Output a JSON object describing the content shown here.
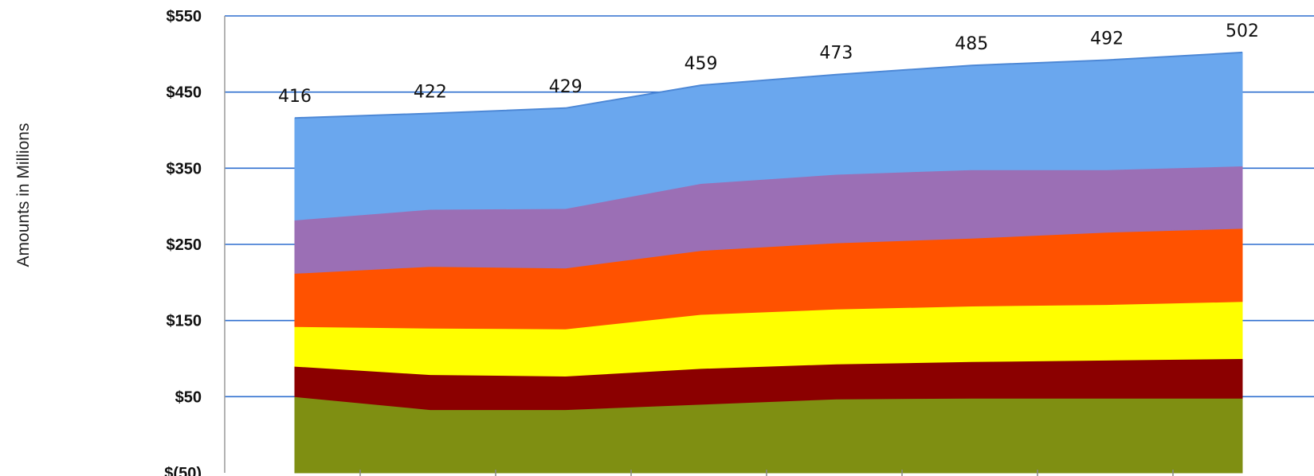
{
  "chart_data": {
    "type": "area",
    "stacked": true,
    "ylabel": "Amounts in Millions",
    "ylim": [
      -50,
      550
    ],
    "y_ticks": [
      {
        "value": 550,
        "label": "$550"
      },
      {
        "value": 450,
        "label": "$450"
      },
      {
        "value": 350,
        "label": "$350"
      },
      {
        "value": 250,
        "label": "$250"
      },
      {
        "value": 150,
        "label": "$150"
      },
      {
        "value": 50,
        "label": "$50"
      },
      {
        "value": -50,
        "label": "$(50)"
      }
    ],
    "grid": true,
    "num_points": 8,
    "series": [
      {
        "color": "#7f8f12",
        "values": [
          50,
          33,
          33,
          40,
          47,
          48,
          48,
          48
        ]
      },
      {
        "color": "#8b0000",
        "values": [
          40,
          46,
          44,
          47,
          46,
          48,
          50,
          52
        ]
      },
      {
        "color": "#ffff00",
        "values": [
          52,
          61,
          62,
          71,
          72,
          73,
          73,
          75
        ]
      },
      {
        "color": "#ff5200",
        "values": [
          70,
          81,
          80,
          84,
          87,
          89,
          95,
          96
        ]
      },
      {
        "color": "#9b6fb5",
        "values": [
          70,
          75,
          78,
          88,
          90,
          90,
          82,
          82
        ]
      },
      {
        "color": "#6aa7ee",
        "values": [
          134,
          126,
          132,
          129,
          131,
          137,
          144,
          149
        ]
      }
    ],
    "totals": [
      416,
      422,
      429,
      459,
      473,
      485,
      492,
      502
    ]
  }
}
